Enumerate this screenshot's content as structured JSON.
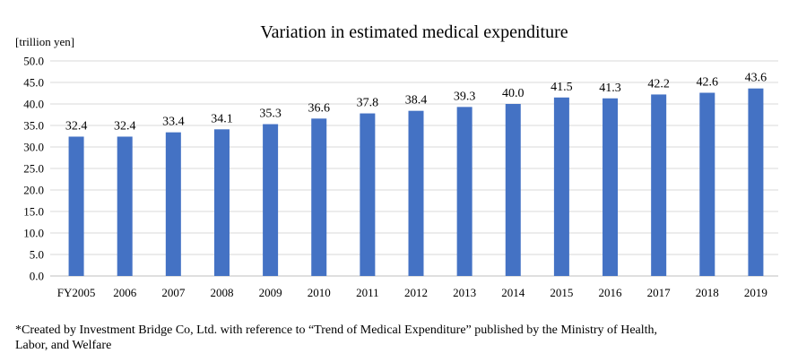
{
  "chart_data": {
    "type": "bar",
    "title": "Variation in estimated medical expenditure",
    "unit_label": "[trillion yen]",
    "categories": [
      "FY2005",
      "2006",
      "2007",
      "2008",
      "2009",
      "2010",
      "2011",
      "2012",
      "2013",
      "2014",
      "2015",
      "2016",
      "2017",
      "2018",
      "2019"
    ],
    "values": [
      32.4,
      32.4,
      33.4,
      34.1,
      35.3,
      36.6,
      37.8,
      38.4,
      39.3,
      40.0,
      41.5,
      41.3,
      42.2,
      42.6,
      43.6
    ],
    "value_labels": [
      "32.4",
      "32.4",
      "33.4",
      "34.1",
      "35.3",
      "36.6",
      "37.8",
      "38.4",
      "39.3",
      "40.0",
      "41.5",
      "41.3",
      "42.2",
      "42.6",
      "43.6"
    ],
    "ylim": [
      0,
      50
    ],
    "yticks": [
      "0.0",
      "5.0",
      "10.0",
      "15.0",
      "20.0",
      "25.0",
      "30.0",
      "35.0",
      "40.0",
      "45.0",
      "50.0"
    ],
    "grid": true,
    "bar_color": "#4472C4"
  },
  "footnote": {
    "line1": "*Created by Investment Bridge Co, Ltd. with reference to “Trend of Medical Expenditure” published by the Ministry of Health,",
    "line2": "Labor, and Welfare"
  }
}
